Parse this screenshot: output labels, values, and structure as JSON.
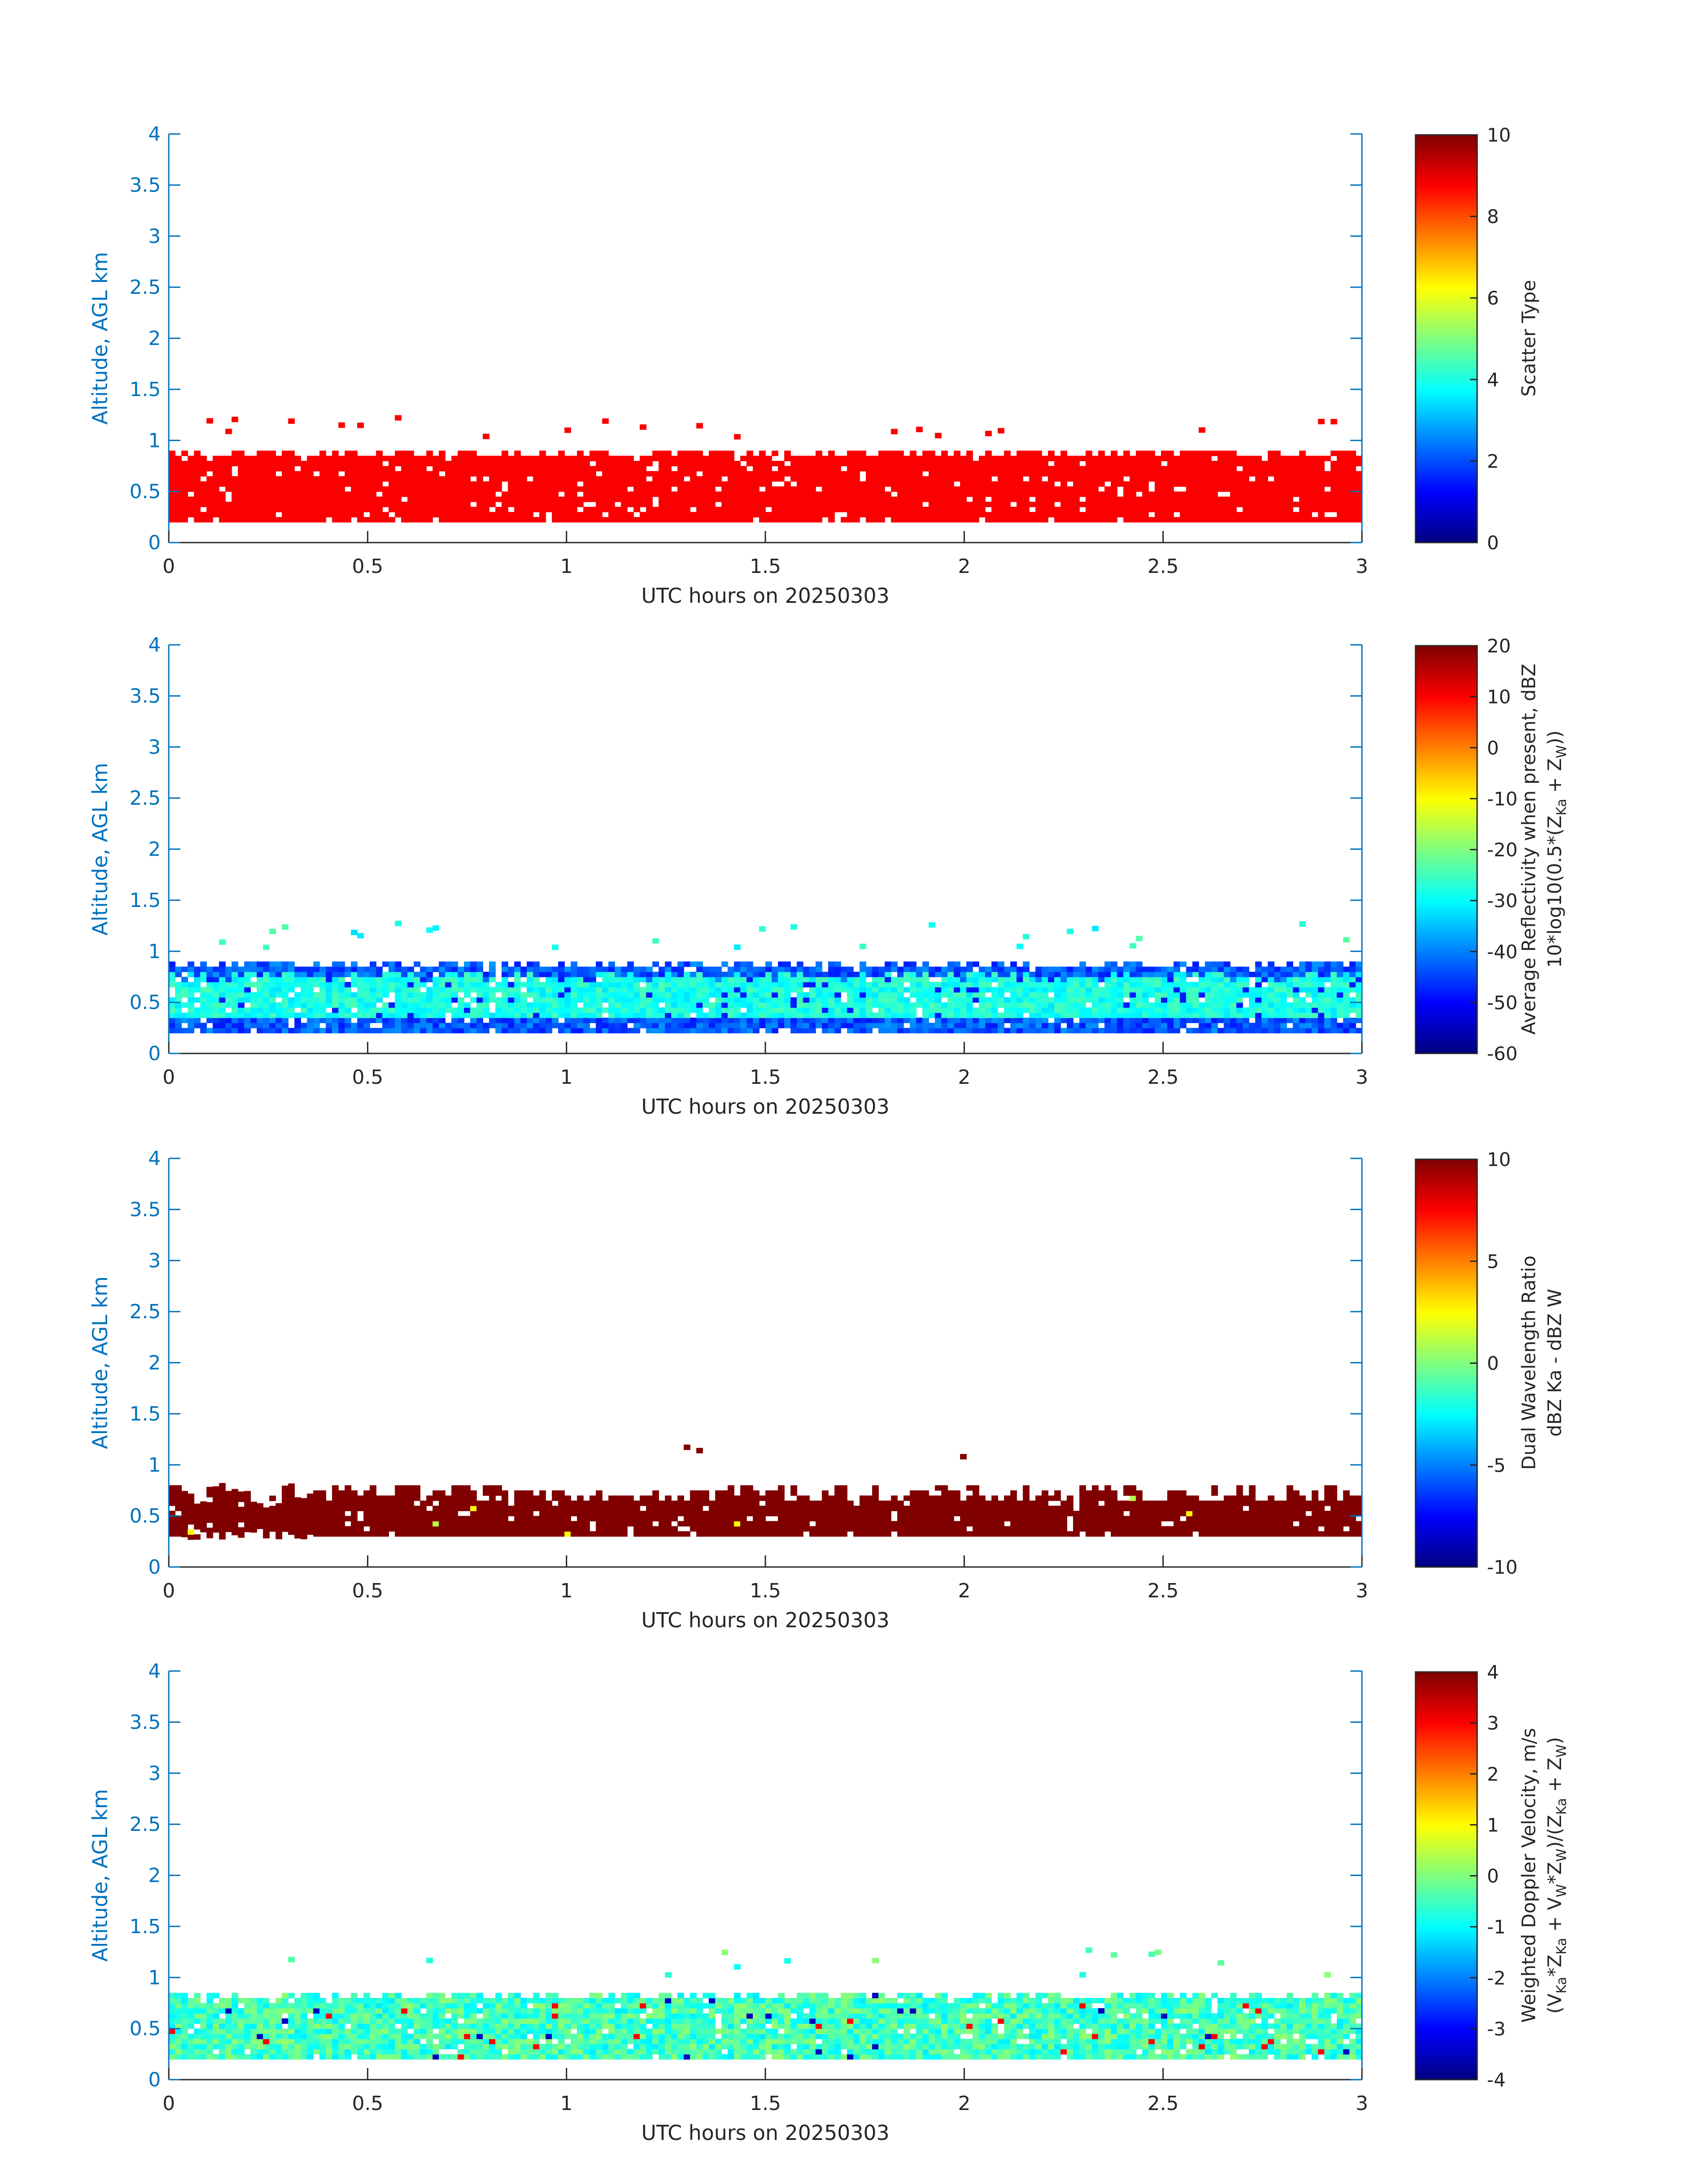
{
  "figure": {
    "background": "#ffffff",
    "axis_color": "#0072bd",
    "text_color": "#262626"
  },
  "chart_data": [
    {
      "type": "heatmap",
      "title": "",
      "xlabel": "UTC hours on 20250303",
      "ylabel": "Altitude, AGL km",
      "xlim": [
        0,
        3
      ],
      "ylim": [
        0,
        4
      ],
      "xticks": [
        "0",
        "0.5",
        "1",
        "1.5",
        "2",
        "2.5",
        "3"
      ],
      "yticks": [
        "0",
        "0.5",
        "1",
        "1.5",
        "2",
        "2.5",
        "3",
        "3.5",
        "4"
      ],
      "colorbar": {
        "label": [
          "Scatter Type"
        ],
        "range": [
          0,
          10
        ],
        "ticks": [
          "0",
          "2",
          "4",
          "6",
          "8",
          "10"
        ],
        "colormap": "jet"
      },
      "field": {
        "name": "scatter_type",
        "constant_value": 8.8,
        "bottom_km": 0.2,
        "top_km_range": [
          0.8,
          0.9
        ],
        "sparse_above_km": [
          1.0,
          1.2
        ],
        "x_range_h": [
          0,
          3
        ]
      }
    },
    {
      "type": "heatmap",
      "title": "",
      "xlabel": "UTC hours on 20250303",
      "ylabel": "Altitude, AGL km",
      "xlim": [
        0,
        3
      ],
      "ylim": [
        0,
        4
      ],
      "xticks": [
        "0",
        "0.5",
        "1",
        "1.5",
        "2",
        "2.5",
        "3"
      ],
      "yticks": [
        "0",
        "0.5",
        "1",
        "1.5",
        "2",
        "2.5",
        "3",
        "3.5",
        "4"
      ],
      "colorbar": {
        "label": [
          "Average Reflectivity when present, dBZ",
          "10*log10(0.5*(Z_Ka + Z_W))"
        ],
        "range": [
          -60,
          20
        ],
        "ticks": [
          "-60",
          "-50",
          "-40",
          "-30",
          "-20",
          "-10",
          "0",
          "10",
          "20"
        ],
        "colormap": "jet"
      },
      "field": {
        "name": "reflectivity",
        "core_value": -28,
        "edge_value": -48,
        "bottom_km": 0.2,
        "top_km_range": [
          0.8,
          0.9
        ],
        "sparse_above_km": [
          1.0,
          1.25
        ],
        "x_range_h": [
          0,
          3
        ]
      }
    },
    {
      "type": "heatmap",
      "title": "",
      "xlabel": "UTC hours on 20250303",
      "ylabel": "Altitude, AGL km",
      "xlim": [
        0,
        3
      ],
      "ylim": [
        0,
        4
      ],
      "xticks": [
        "0",
        "0.5",
        "1",
        "1.5",
        "2",
        "2.5",
        "3"
      ],
      "yticks": [
        "0",
        "0.5",
        "1",
        "1.5",
        "2",
        "2.5",
        "3",
        "3.5",
        "4"
      ],
      "colorbar": {
        "label": [
          "Dual Wavelength Ratio",
          "dBZ Ka - dBZ W"
        ],
        "range": [
          -10,
          10
        ],
        "ticks": [
          "-10",
          "-5",
          "0",
          "5",
          "10"
        ],
        "colormap": "jet"
      },
      "field": {
        "name": "dual_wavelength_ratio",
        "core_value": 10,
        "bottom_km": 0.3,
        "top_km_range": [
          0.6,
          0.8
        ],
        "sparse_above_km": [
          1.05,
          1.15
        ],
        "x_range_h": [
          0,
          3
        ]
      }
    },
    {
      "type": "heatmap",
      "title": "",
      "xlabel": "UTC hours on 20250303",
      "ylabel": "Altitude, AGL km",
      "xlim": [
        0,
        3
      ],
      "ylim": [
        0,
        4
      ],
      "xticks": [
        "0",
        "0.5",
        "1",
        "1.5",
        "2",
        "2.5",
        "3"
      ],
      "yticks": [
        "0",
        "0.5",
        "1",
        "1.5",
        "2",
        "2.5",
        "3",
        "3.5",
        "4"
      ],
      "colorbar": {
        "label": [
          "Weighted Doppler Velocity, m/s",
          "(V_Ka*Z_Ka + V_W*Z_W)/(Z_Ka + Z_W)"
        ],
        "range": [
          -4,
          4
        ],
        "ticks": [
          "-4",
          "-3",
          "-2",
          "-1",
          "0",
          "1",
          "2",
          "3",
          "4"
        ],
        "colormap": "jet"
      },
      "field": {
        "name": "doppler_velocity",
        "core_value": -0.5,
        "bottom_km": 0.2,
        "top_km_range": [
          0.75,
          0.85
        ],
        "sparse_above_km": [
          1.0,
          1.25
        ],
        "x_range_h": [
          0,
          3
        ]
      }
    }
  ]
}
